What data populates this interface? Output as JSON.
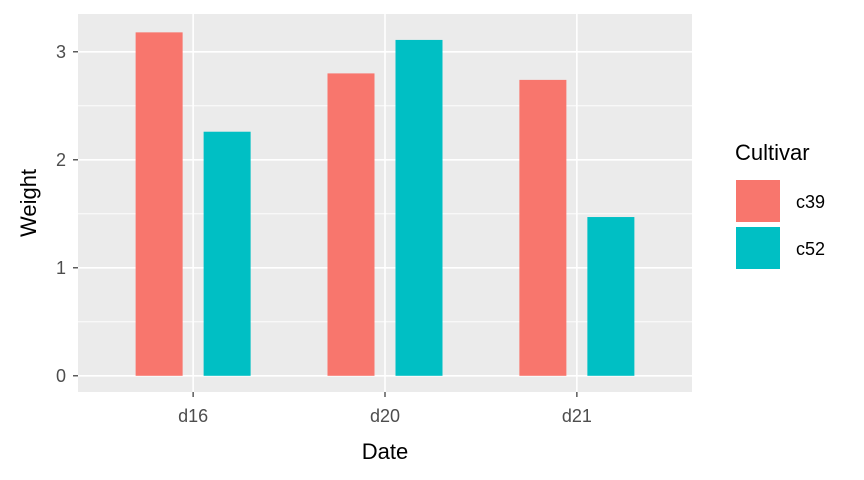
{
  "chart_data": {
    "type": "bar",
    "categories": [
      "d16",
      "d20",
      "d21"
    ],
    "series": [
      {
        "name": "c39",
        "color": "#F8766D",
        "values": [
          3.18,
          2.8,
          2.74
        ]
      },
      {
        "name": "c52",
        "color": "#00BFC4",
        "values": [
          2.26,
          3.11,
          1.47
        ]
      }
    ],
    "xlabel": "Date",
    "ylabel": "Weight",
    "ylim": [
      -0.15,
      3.35
    ],
    "yticks": [
      0,
      1,
      2,
      3
    ],
    "grid": true,
    "panel_background": "#EBEBEB",
    "legend": {
      "title": "Cultivar",
      "position": "right"
    }
  }
}
